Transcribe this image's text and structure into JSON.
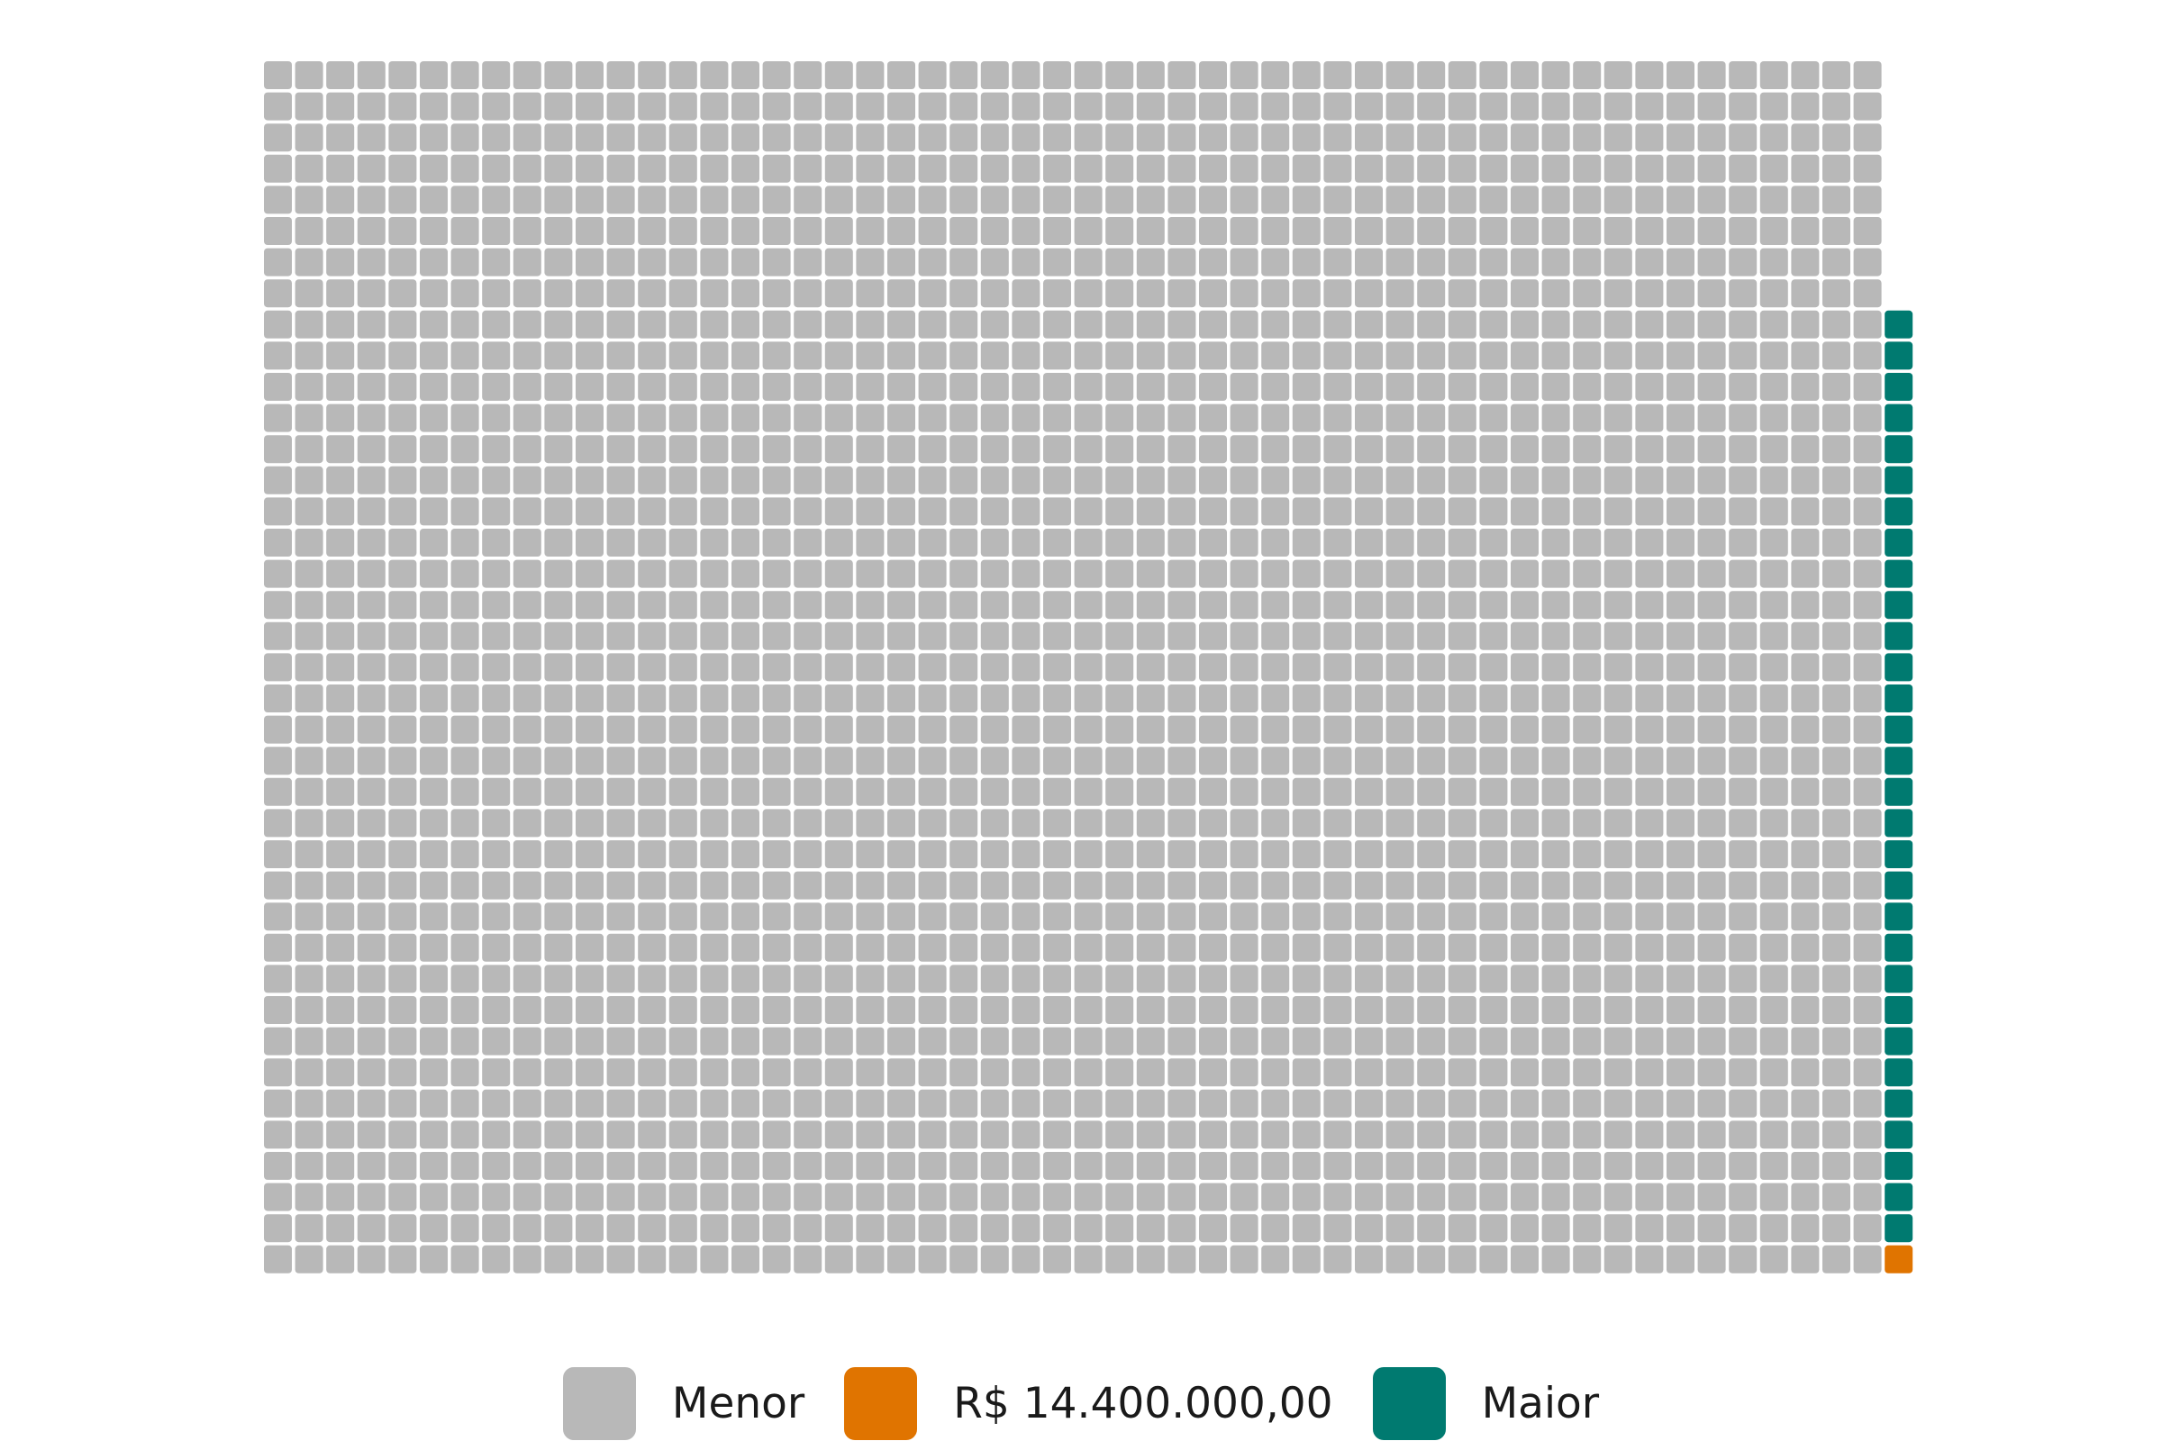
{
  "chart_data": {
    "type": "waffle",
    "grid": {
      "columns": 53,
      "rows": 39
    },
    "fill_order": "column-major, bottom-to-top, left-to-right",
    "categories": [
      {
        "name": "Menor",
        "count": 2028,
        "color": "#B8B8B8"
      },
      {
        "name": "R$ 14.400.000,00",
        "count": 1,
        "color": "#E07400"
      },
      {
        "name": "Maior",
        "count": 30,
        "color": "#007A70"
      }
    ],
    "total": 2059,
    "legend": {
      "position": "bottom"
    },
    "grid_lines": false
  }
}
